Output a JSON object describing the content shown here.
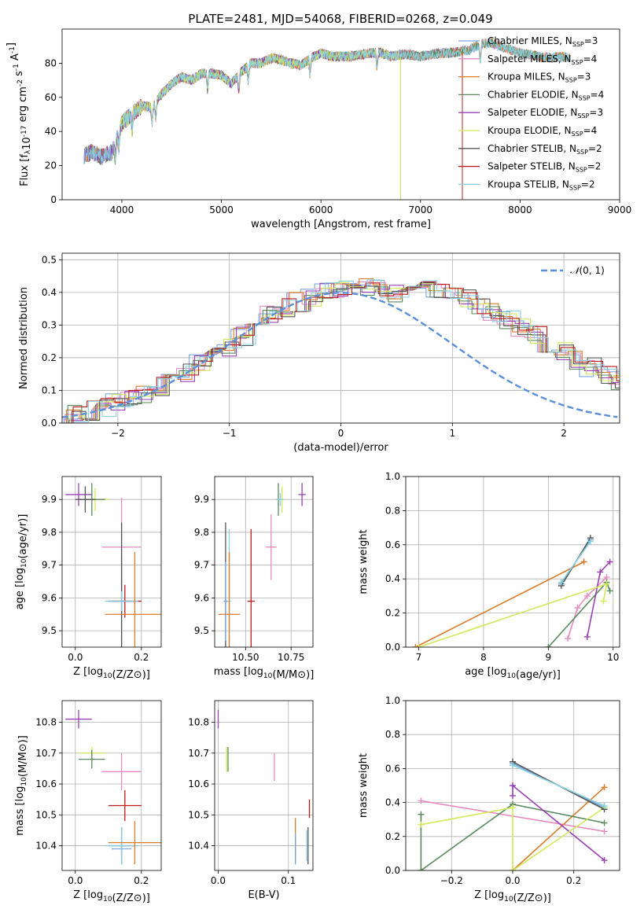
{
  "figure": {
    "title": "PLATE=2481, MJD=54068, FIBERID=0268, z=0.049"
  },
  "colors": {
    "Chabrier MILES": "#7aa6e0",
    "Salpeter MILES": "#e58bbf",
    "Kroupa MILES": "#d97c2b",
    "Chabrier ELODIE": "#5a8a5e",
    "Salpeter ELODIE": "#9b3fb5",
    "Kroupa ELODIE": "#d4e85a",
    "Chabrier STELIB": "#555555",
    "Salpeter STELIB": "#c01818",
    "Kroupa STELIB": "#88d0e0"
  },
  "chart_data": [
    {
      "id": "spectrum",
      "type": "line",
      "xlabel": "wavelength [Angstrom, rest frame]",
      "ylabel": "Flux [f_λ10^-17 erg cm^-2 s^-1 A^-1]",
      "xlim": [
        3400,
        9000
      ],
      "ylim": [
        0,
        100
      ],
      "xticks": [
        4000,
        5000,
        6000,
        7000,
        8000,
        9000
      ],
      "yticks": [
        0,
        20,
        40,
        60,
        80
      ],
      "grid": false,
      "legend_position": "top-right",
      "legend": [
        {
          "label": "Chabrier MILES, N",
          "sub": "SSP",
          "post": "=3"
        },
        {
          "label": "Salpeter MILES, N",
          "sub": "SSP",
          "post": "=4"
        },
        {
          "label": "Kroupa MILES, N",
          "sub": "SSP",
          "post": "=3"
        },
        {
          "label": "Chabrier ELODIE, N",
          "sub": "SSP",
          "post": "=4"
        },
        {
          "label": "Salpeter ELODIE, N",
          "sub": "SSP",
          "post": "=3"
        },
        {
          "label": "Kroupa ELODIE, N",
          "sub": "SSP",
          "post": "=4"
        },
        {
          "label": "Chabrier STELIB, N",
          "sub": "SSP",
          "post": "=2"
        },
        {
          "label": "Salpeter STELIB, N",
          "sub": "SSP",
          "post": "=2"
        },
        {
          "label": "Kroupa STELIB, N",
          "sub": "SSP",
          "post": "=2"
        }
      ],
      "continuum": {
        "x": [
          3620,
          3700,
          3800,
          3900,
          4000,
          4100,
          4200,
          4300,
          4400,
          4500,
          4600,
          4700,
          4800,
          4900,
          5000,
          5100,
          5200,
          5300,
          5400,
          5500,
          5600,
          5700,
          5800,
          5900,
          6000,
          6100,
          6200,
          6300,
          6400,
          6500,
          6600,
          6700,
          6800,
          6900,
          7000,
          7100,
          7200,
          7300,
          7400,
          7500,
          7600,
          7700,
          7800,
          7900,
          8000,
          8100,
          8200,
          8300,
          8400,
          8500
        ],
        "y": [
          26,
          28,
          25,
          28,
          45,
          50,
          55,
          54,
          62,
          68,
          72,
          70,
          74,
          74,
          73,
          68,
          75,
          80,
          80,
          83,
          82,
          80,
          79,
          83,
          86,
          84,
          84,
          84,
          85,
          86,
          86,
          84,
          85,
          85,
          84,
          85,
          86,
          86,
          87,
          88,
          91,
          92,
          90,
          88,
          86,
          85,
          84,
          83,
          84,
          83
        ]
      },
      "full_coverage_series": [
        "Chabrier MILES",
        "Salpeter MILES",
        "Kroupa MILES",
        "Chabrier ELODIE",
        "Kroupa STELIB"
      ],
      "series_ranges": [
        {
          "name": "Salpeter ELODIE",
          "xmin": 3620,
          "xmax": 6800
        },
        {
          "name": "Kroupa ELODIE",
          "xmin": 3920,
          "xmax": 6800
        },
        {
          "name": "Chabrier STELIB",
          "xmin": 3620,
          "xmax": 7420
        },
        {
          "name": "Salpeter STELIB",
          "xmin": 3620,
          "xmax": 7420
        }
      ]
    },
    {
      "id": "residuals",
      "type": "line",
      "xlabel": "(data-model)/error",
      "ylabel": "Normed distribution",
      "xlim": [
        -2.5,
        2.5
      ],
      "ylim": [
        0,
        0.52
      ],
      "xticks": [
        -2,
        -1,
        0,
        1,
        2
      ],
      "yticks": [
        0.0,
        0.1,
        0.2,
        0.3,
        0.4,
        0.5
      ],
      "grid": true,
      "legend_position": "top-right",
      "legend": [
        {
          "label": "N(0,1)",
          "symbol": "𝒩",
          "args": "(0, 1)"
        }
      ],
      "gaussian": {
        "mean": 0,
        "sigma": 1
      },
      "bin_width": 0.125,
      "histogram_profile": [
        0.025,
        0.03,
        0.038,
        0.048,
        0.062,
        0.075,
        0.09,
        0.11,
        0.13,
        0.155,
        0.18,
        0.205,
        0.23,
        0.265,
        0.3,
        0.33,
        0.355,
        0.37,
        0.385,
        0.4,
        0.41,
        0.42,
        0.415,
        0.41,
        0.4,
        0.41,
        0.415,
        0.41,
        0.4,
        0.38,
        0.36,
        0.34,
        0.315,
        0.29,
        0.27,
        0.245,
        0.22,
        0.195,
        0.17,
        0.15,
        0.13,
        0.11,
        0.09,
        0.075,
        0.06,
        0.05,
        0.04,
        0.033
      ]
    },
    {
      "id": "age_vs_Z",
      "type": "scatter",
      "xlabel": "Z [log10(Z/Z⊙)]",
      "ylabel": "age [log10(age/yr)]",
      "xlim": [
        -0.04,
        0.26
      ],
      "ylim": [
        9.45,
        9.97
      ],
      "xticks": [
        0.0,
        0.2
      ],
      "yticks": [
        9.5,
        9.6,
        9.7,
        9.8,
        9.9
      ],
      "grid": true,
      "points": [
        {
          "series": "Salpeter ELODIE",
          "x": 0.01,
          "y": 9.915,
          "xerr": 0.04,
          "yerr": 0.035
        },
        {
          "series": "Kroupa ELODIE",
          "x": 0.06,
          "y": 9.9,
          "xerr": 0.04,
          "yerr": 0.035
        },
        {
          "series": "Chabrier ELODIE",
          "x": 0.05,
          "y": 9.9,
          "xerr": 0.04,
          "yerr": 0.05
        },
        {
          "series": "Chabrier STELIB",
          "x": 0.03,
          "y": 9.9,
          "xerr": 0.03,
          "yerr": 0.04
        },
        {
          "series": "Salpeter MILES",
          "x": 0.14,
          "y": 9.755,
          "xerr": 0.06,
          "yerr": 0.15
        },
        {
          "series": "Chabrier MILES",
          "x": 0.14,
          "y": 9.59,
          "xerr": 0.04,
          "yerr": 0.14
        },
        {
          "series": "Chabrier STELIB",
          "x": 0.14,
          "y": 9.59,
          "xerr": 0.03,
          "yerr": 0.24
        },
        {
          "series": "Salpeter STELIB",
          "x": 0.15,
          "y": 9.59,
          "xerr": 0.05,
          "yerr": 0.05
        },
        {
          "series": "Kroupa STELIB",
          "x": 0.14,
          "y": 9.59,
          "xerr": 0.05,
          "yerr": 0.03
        },
        {
          "series": "Kroupa MILES",
          "x": 0.18,
          "y": 9.55,
          "xerr": 0.09,
          "yerr": 0.19
        }
      ]
    },
    {
      "id": "age_vs_mass",
      "type": "scatter",
      "xlabel": "mass [log10(M/M⊙)]",
      "ylabel": "",
      "xlim": [
        10.33,
        10.87
      ],
      "ylim": [
        9.45,
        9.97
      ],
      "xticks": [
        10.5,
        10.75
      ],
      "xticklabels": [
        "10.50",
        "10.75"
      ],
      "yticks": [
        9.5,
        9.6,
        9.7,
        9.8,
        9.9
      ],
      "grid": true,
      "points": [
        {
          "series": "Chabrier STELIB",
          "x": 10.39,
          "y": 9.59,
          "xerr": 0.01,
          "yerr": 0.24
        },
        {
          "series": "Chabrier MILES",
          "x": 10.39,
          "y": 9.59,
          "xerr": 0.01,
          "yerr": 0.12
        },
        {
          "series": "Kroupa STELIB",
          "x": 10.41,
          "y": 9.59,
          "xerr": 0.01,
          "yerr": 0.22
        },
        {
          "series": "Kroupa MILES",
          "x": 10.41,
          "y": 9.55,
          "xerr": 0.06,
          "yerr": 0.19
        },
        {
          "series": "Salpeter STELIB",
          "x": 10.53,
          "y": 9.59,
          "xerr": 0.02,
          "yerr": 0.22
        },
        {
          "series": "Salpeter MILES",
          "x": 10.64,
          "y": 9.755,
          "xerr": 0.03,
          "yerr": 0.1
        },
        {
          "series": "Chabrier ELODIE",
          "x": 10.68,
          "y": 9.9,
          "xerr": 0.01,
          "yerr": 0.05
        },
        {
          "series": "Kroupa ELODIE",
          "x": 10.7,
          "y": 9.9,
          "xerr": 0.01,
          "yerr": 0.04
        },
        {
          "series": "Kroupa STELIB",
          "x": 10.69,
          "y": 9.9,
          "xerr": 0.02,
          "yerr": 0.02
        },
        {
          "series": "Salpeter ELODIE",
          "x": 10.81,
          "y": 9.915,
          "xerr": 0.02,
          "yerr": 0.035
        }
      ]
    },
    {
      "id": "weight_vs_age",
      "type": "line",
      "xlabel": "age [log10(age/yr)]",
      "ylabel": "mass weight",
      "xlim": [
        6.8,
        10.1
      ],
      "ylim": [
        0,
        1.0
      ],
      "xticks": [
        7,
        8,
        9,
        10
      ],
      "yticks": [
        0.0,
        0.2,
        0.4,
        0.6,
        0.8,
        1.0
      ],
      "grid": true,
      "series": [
        {
          "name": "Chabrier MILES",
          "points": [
            [
              9.2,
              0.37
            ],
            [
              9.65,
              0.63
            ]
          ]
        },
        {
          "name": "Salpeter MILES",
          "points": [
            [
              9.3,
              0.05
            ],
            [
              9.45,
              0.23
            ],
            [
              9.6,
              0.3
            ],
            [
              9.9,
              0.41
            ]
          ]
        },
        {
          "name": "Kroupa MILES",
          "points": [
            [
              6.95,
              0.0
            ],
            [
              9.55,
              0.5
            ]
          ]
        },
        {
          "name": "Chabrier ELODIE",
          "points": [
            [
              9.0,
              0.0
            ],
            [
              9.9,
              0.38
            ],
            [
              9.95,
              0.33
            ]
          ]
        },
        {
          "name": "Salpeter ELODIE",
          "points": [
            [
              9.6,
              0.06
            ],
            [
              9.8,
              0.44
            ],
            [
              9.95,
              0.5
            ]
          ]
        },
        {
          "name": "Kroupa ELODIE",
          "points": [
            [
              7.0,
              0.0
            ],
            [
              9.9,
              0.37
            ],
            [
              9.85,
              0.27
            ]
          ]
        },
        {
          "name": "Chabrier STELIB",
          "points": [
            [
              9.2,
              0.36
            ],
            [
              9.65,
              0.64
            ]
          ]
        },
        {
          "name": "Salpeter STELIB",
          "points": []
        },
        {
          "name": "Kroupa STELIB",
          "points": [
            [
              9.2,
              0.38
            ],
            [
              9.65,
              0.62
            ]
          ]
        }
      ]
    },
    {
      "id": "mass_vs_Z",
      "type": "scatter",
      "xlabel": "Z [log10(Z/Z⊙)]",
      "ylabel": "mass [log10(M/M⊙)]",
      "xlim": [
        -0.04,
        0.26
      ],
      "ylim": [
        10.32,
        10.87
      ],
      "xticks": [
        0.0,
        0.2
      ],
      "yticks": [
        10.4,
        10.5,
        10.6,
        10.7,
        10.8
      ],
      "grid": true,
      "points": [
        {
          "series": "Salpeter ELODIE",
          "x": 0.01,
          "y": 10.81,
          "xerr": 0.04,
          "yerr": 0.03
        },
        {
          "series": "Kroupa ELODIE",
          "x": 0.05,
          "y": 10.7,
          "xerr": 0.04,
          "yerr": 0.02
        },
        {
          "series": "Chabrier ELODIE",
          "x": 0.05,
          "y": 10.68,
          "xerr": 0.04,
          "yerr": 0.03
        },
        {
          "series": "Salpeter MILES",
          "x": 0.14,
          "y": 10.64,
          "xerr": 0.06,
          "yerr": 0.06
        },
        {
          "series": "Salpeter STELIB",
          "x": 0.15,
          "y": 10.53,
          "xerr": 0.05,
          "yerr": 0.05
        },
        {
          "series": "Chabrier STELIB",
          "x": 0.14,
          "y": 10.4,
          "xerr": 0.04,
          "yerr": 0.06
        },
        {
          "series": "Chabrier MILES",
          "x": 0.14,
          "y": 10.39,
          "xerr": 0.03,
          "yerr": 0.03
        },
        {
          "series": "Kroupa STELIB",
          "x": 0.14,
          "y": 10.4,
          "xerr": 0.05,
          "yerr": 0.06
        },
        {
          "series": "Kroupa MILES",
          "x": 0.18,
          "y": 10.41,
          "xerr": 0.08,
          "yerr": 0.07
        }
      ]
    },
    {
      "id": "mass_vs_EBV",
      "type": "scatter",
      "xlabel": "E(B-V)",
      "ylabel": "",
      "xlim": [
        -0.005,
        0.135
      ],
      "ylim": [
        10.32,
        10.87
      ],
      "xticks": [
        0.0,
        0.1
      ],
      "yticks": [
        10.4,
        10.5,
        10.6,
        10.7,
        10.8
      ],
      "grid": true,
      "points": [
        {
          "series": "Salpeter ELODIE",
          "x": 0.0,
          "y": 10.81,
          "xerr": 0.0,
          "yerr": 0.03
        },
        {
          "series": "Kroupa ELODIE",
          "x": 0.012,
          "y": 10.68,
          "xerr": 0.0,
          "yerr": 0.04
        },
        {
          "series": "Chabrier ELODIE",
          "x": 0.014,
          "y": 10.68,
          "xerr": 0.0,
          "yerr": 0.04
        },
        {
          "series": "Salpeter MILES",
          "x": 0.08,
          "y": 10.655,
          "xerr": 0.0,
          "yerr": 0.045
        },
        {
          "series": "Salpeter STELIB",
          "x": 0.13,
          "y": 10.52,
          "xerr": 0.0,
          "yerr": 0.03
        },
        {
          "series": "Kroupa MILES",
          "x": 0.11,
          "y": 10.42,
          "xerr": 0.0,
          "yerr": 0.07
        },
        {
          "series": "Chabrier MILES",
          "x": 0.11,
          "y": 10.39,
          "xerr": 0.0,
          "yerr": 0.05
        },
        {
          "series": "Kroupa STELIB",
          "x": 0.126,
          "y": 10.4,
          "xerr": 0.0,
          "yerr": 0.05
        },
        {
          "series": "Chabrier STELIB",
          "x": 0.128,
          "y": 10.4,
          "xerr": 0.0,
          "yerr": 0.06
        }
      ]
    },
    {
      "id": "weight_vs_Z",
      "type": "line",
      "xlabel": "Z [log10(Z/Z⊙)]",
      "ylabel": "mass weight",
      "xlim": [
        -0.35,
        0.35
      ],
      "ylim": [
        0,
        1.0
      ],
      "xticks": [
        -0.2,
        0.0,
        0.2
      ],
      "xticklabels": [
        "−0.2",
        "0.0",
        "0.2"
      ],
      "yticks": [
        0.0,
        0.2,
        0.4,
        0.6,
        0.8,
        1.0
      ],
      "grid": true,
      "series": [
        {
          "name": "Chabrier MILES",
          "points": [
            [
              0.0,
              0.63
            ],
            [
              0.3,
              0.37
            ]
          ]
        },
        {
          "name": "Salpeter MILES",
          "points": [
            [
              -0.3,
              0.41
            ],
            [
              0.3,
              0.23
            ]
          ]
        },
        {
          "name": "Kroupa MILES",
          "points": [
            [
              0.0,
              0.0
            ],
            [
              0.3,
              0.49
            ]
          ]
        },
        {
          "name": "Chabrier ELODIE",
          "points": [
            [
              -0.3,
              0.33
            ],
            [
              -0.3,
              0.0
            ],
            [
              0.0,
              0.39
            ],
            [
              0.3,
              0.28
            ]
          ]
        },
        {
          "name": "Salpeter ELODIE",
          "points": [
            [
              0.0,
              0.44
            ],
            [
              0.0,
              0.5
            ],
            [
              0.3,
              0.06
            ]
          ]
        },
        {
          "name": "Kroupa ELODIE",
          "points": [
            [
              -0.3,
              0.27
            ],
            [
              0.0,
              0.37
            ],
            [
              0.0,
              0.0
            ],
            [
              0.3,
              0.37
            ]
          ]
        },
        {
          "name": "Chabrier STELIB",
          "points": [
            [
              0.0,
              0.64
            ],
            [
              0.3,
              0.36
            ]
          ]
        },
        {
          "name": "Salpeter STELIB",
          "points": []
        },
        {
          "name": "Kroupa STELIB",
          "points": [
            [
              0.0,
              0.62
            ],
            [
              0.3,
              0.38
            ]
          ]
        }
      ]
    }
  ]
}
